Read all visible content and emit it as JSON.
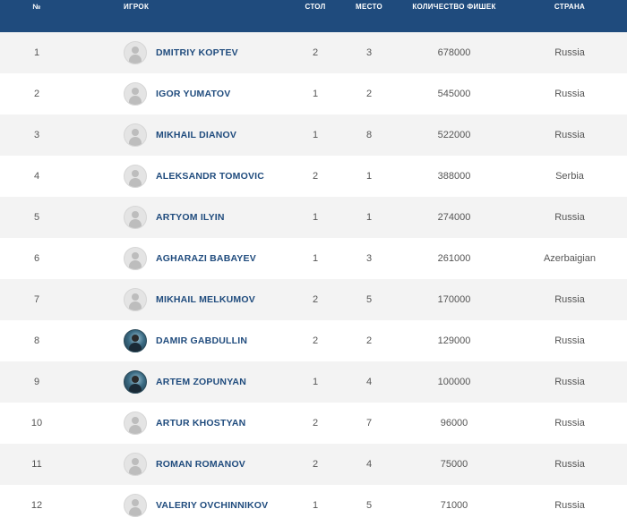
{
  "columns": {
    "no": "№",
    "player": "ИГРОК",
    "table": "СТОЛ",
    "seat": "МЕСТО",
    "chips": "КОЛИЧЕСТВО ФИШЕК",
    "country": "СТРАНА"
  },
  "colors": {
    "header_bg": "#1f4b7d",
    "name_text": "#1f4b7d",
    "row_alt": "#f3f3f3"
  },
  "rows": [
    {
      "no": "1",
      "name": "DMITRIY KOPTEV",
      "avatar": "placeholder-avatar-icon",
      "table": "2",
      "seat": "3",
      "chips": "678000",
      "country": "Russia"
    },
    {
      "no": "2",
      "name": "IGOR YUMATOV",
      "avatar": "placeholder-avatar-icon",
      "table": "1",
      "seat": "2",
      "chips": "545000",
      "country": "Russia"
    },
    {
      "no": "3",
      "name": "MIKHAIL DIANOV",
      "avatar": "placeholder-avatar-icon",
      "table": "1",
      "seat": "8",
      "chips": "522000",
      "country": "Russia"
    },
    {
      "no": "4",
      "name": "ALEKSANDR TOMOVIC",
      "avatar": "placeholder-avatar-icon",
      "table": "2",
      "seat": "1",
      "chips": "388000",
      "country": "Serbia"
    },
    {
      "no": "5",
      "name": "ARTYOM ILYIN",
      "avatar": "placeholder-avatar-icon",
      "table": "1",
      "seat": "1",
      "chips": "274000",
      "country": "Russia"
    },
    {
      "no": "6",
      "name": "AGHARAZI BABAYEV",
      "avatar": "placeholder-avatar-icon",
      "table": "1",
      "seat": "3",
      "chips": "261000",
      "country": "Azerbaigian"
    },
    {
      "no": "7",
      "name": "MIKHAIL MELKUMOV",
      "avatar": "placeholder-avatar-icon",
      "table": "2",
      "seat": "5",
      "chips": "170000",
      "country": "Russia"
    },
    {
      "no": "8",
      "name": "DAMIR GABDULLIN",
      "avatar": "photo-avatar",
      "table": "2",
      "seat": "2",
      "chips": "129000",
      "country": "Russia"
    },
    {
      "no": "9",
      "name": "ARTEM ZOPUNYAN",
      "avatar": "photo-avatar",
      "table": "1",
      "seat": "4",
      "chips": "100000",
      "country": "Russia"
    },
    {
      "no": "10",
      "name": "ARTUR KHOSTYAN",
      "avatar": "placeholder-avatar-icon",
      "table": "2",
      "seat": "7",
      "chips": "96000",
      "country": "Russia"
    },
    {
      "no": "11",
      "name": "ROMAN ROMANOV",
      "avatar": "placeholder-avatar-icon",
      "table": "2",
      "seat": "4",
      "chips": "75000",
      "country": "Russia"
    },
    {
      "no": "12",
      "name": "VALERIY OVCHINNIKOV",
      "avatar": "placeholder-avatar-icon",
      "table": "1",
      "seat": "5",
      "chips": "71000",
      "country": "Russia"
    }
  ]
}
